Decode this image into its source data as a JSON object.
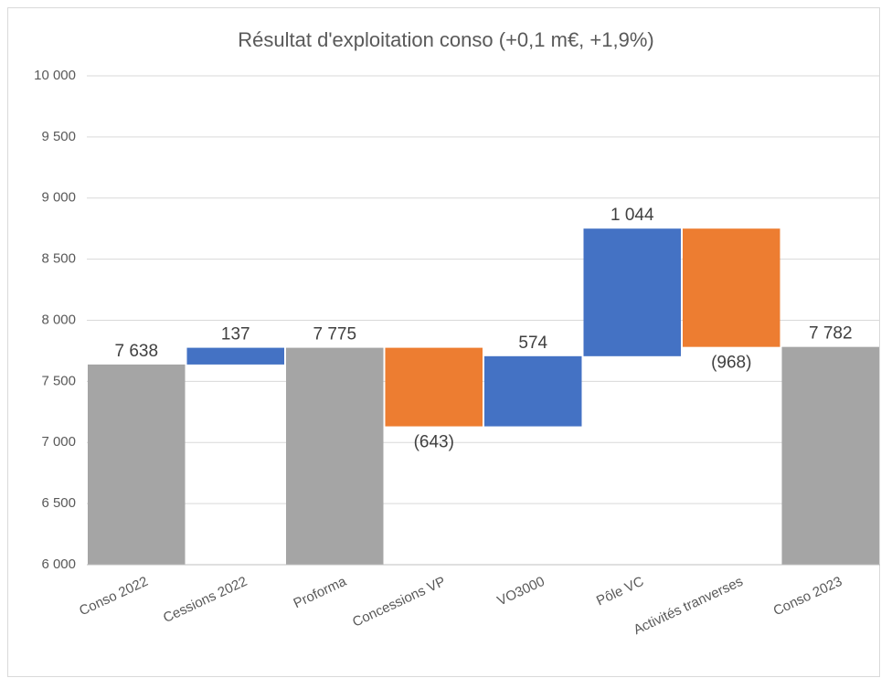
{
  "chart_data": {
    "type": "waterfall",
    "title": "Résultat d'exploitation conso (+0,1 m€, +1,9%)",
    "categories": [
      "Conso 2022",
      "Cessions 2022",
      "Proforma",
      "Concessions VP",
      "VO3000",
      "Pôle VC",
      "Activités tranverses",
      "Conso 2023"
    ],
    "values": [
      7638,
      137,
      7775,
      -643,
      574,
      1044,
      -968,
      7782
    ],
    "value_labels": [
      "7 638",
      "137",
      "7 775",
      "(643)",
      "574",
      "1 044",
      "(968)",
      "7 782"
    ],
    "measure": [
      "total",
      "relative",
      "total",
      "relative",
      "relative",
      "relative",
      "relative",
      "total"
    ],
    "colors": [
      "#a5a5a5",
      "#4472c4",
      "#a5a5a5",
      "#ed7d31",
      "#4472c4",
      "#4472c4",
      "#ed7d31",
      "#a5a5a5"
    ],
    "ylim": [
      6000,
      10000
    ],
    "yticks": [
      {
        "value": 6000,
        "label": "6 000"
      },
      {
        "value": 6500,
        "label": "6 500"
      },
      {
        "value": 7000,
        "label": "7 000"
      },
      {
        "value": 7500,
        "label": "7 500"
      },
      {
        "value": 8000,
        "label": "8 000"
      },
      {
        "value": 8500,
        "label": "8 500"
      },
      {
        "value": 9000,
        "label": "9 000"
      },
      {
        "value": 9500,
        "label": "9 500"
      },
      {
        "value": 10000,
        "label": "10 000"
      }
    ],
    "grid": true
  }
}
